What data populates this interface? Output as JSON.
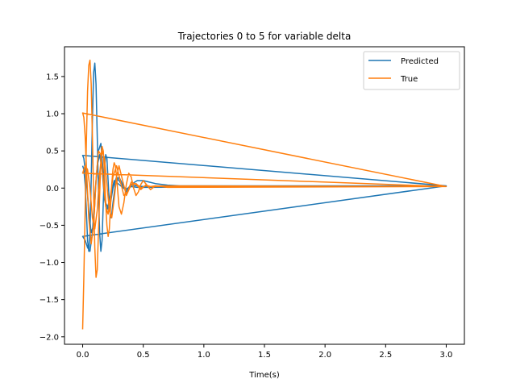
{
  "chart_data": {
    "type": "line",
    "title": "Trajectories 0 to 5 for variable delta",
    "xlabel": "Time(s)",
    "ylabel": "",
    "xlim": [
      -0.15,
      3.15
    ],
    "ylim": [
      -2.1,
      1.9
    ],
    "xticks": [
      0.0,
      0.5,
      1.0,
      1.5,
      2.0,
      2.5,
      3.0
    ],
    "xtick_labels": [
      "0.0",
      "0.5",
      "1.0",
      "1.5",
      "2.0",
      "2.5",
      "3.0"
    ],
    "yticks": [
      -2.0,
      -1.5,
      -1.0,
      -0.5,
      0.0,
      0.5,
      1.0,
      1.5
    ],
    "ytick_labels": [
      "−2.0",
      "−1.5",
      "−1.0",
      "−0.5",
      "0.0",
      "0.5",
      "1.0",
      "1.5"
    ],
    "grid": false,
    "legend_position": "top-right",
    "series": [
      {
        "name": "Predicted",
        "color": "#1f77b4",
        "x": [
          0.0,
          0.01,
          0.02,
          0.03,
          0.04,
          0.05,
          0.06,
          0.07,
          0.08,
          0.09,
          0.1,
          0.11,
          0.12,
          0.13,
          0.14,
          0.15,
          0.16,
          0.17,
          0.18,
          0.19,
          0.2,
          0.21,
          0.22,
          0.23,
          0.24,
          0.25,
          0.27,
          0.3,
          0.33,
          0.36,
          0.4,
          0.45,
          0.5,
          0.55,
          0.6,
          0.7,
          0.8,
          3.0,
          0.0,
          0.01,
          0.03,
          0.05,
          0.07,
          0.09,
          0.11,
          0.13,
          0.15,
          0.17,
          0.19,
          0.22,
          0.25,
          0.28,
          0.32,
          0.36,
          0.4,
          0.45,
          0.5,
          0.6,
          3.0,
          0.0,
          0.02,
          0.04,
          0.06,
          0.08,
          0.1,
          0.12,
          0.14,
          0.16,
          0.18,
          0.2,
          0.23,
          0.26,
          0.3,
          0.35,
          0.4,
          0.45,
          0.5,
          3.0
        ],
        "y": [
          0.3,
          0.25,
          0.05,
          -0.3,
          -0.7,
          -0.85,
          -0.6,
          0.1,
          0.9,
          1.55,
          1.68,
          1.4,
          0.7,
          -0.05,
          -0.6,
          -0.85,
          -0.7,
          -0.2,
          0.25,
          0.45,
          0.4,
          0.1,
          -0.2,
          -0.4,
          -0.35,
          -0.2,
          0.05,
          0.15,
          0.05,
          -0.05,
          0.05,
          0.1,
          0.1,
          0.08,
          0.06,
          0.04,
          0.03,
          0.03,
          0.44,
          0.4,
          0.1,
          -0.3,
          -0.6,
          -0.5,
          0.1,
          0.5,
          0.6,
          0.2,
          -0.2,
          -0.3,
          0.0,
          0.15,
          0.05,
          -0.02,
          0.04,
          0.03,
          0.02,
          0.02,
          0.03,
          -0.65,
          -0.7,
          -0.8,
          -0.85,
          -0.6,
          -0.1,
          0.3,
          0.45,
          0.25,
          -0.15,
          -0.3,
          -0.1,
          0.1,
          0.05,
          -0.02,
          0.02,
          0.01,
          0.01,
          0.03
        ]
      },
      {
        "name": "True",
        "color": "#ff7f0e",
        "x": [
          0.0,
          0.01,
          0.02,
          0.03,
          0.04,
          0.05,
          0.06,
          0.07,
          0.08,
          0.09,
          0.1,
          0.11,
          0.12,
          0.13,
          0.14,
          0.15,
          0.16,
          0.17,
          0.18,
          0.19,
          0.2,
          0.21,
          0.22,
          0.23,
          0.24,
          0.25,
          0.26,
          0.27,
          0.28,
          0.29,
          0.3,
          0.32,
          0.34,
          0.36,
          0.38,
          0.4,
          0.42,
          0.44,
          0.46,
          0.48,
          0.5,
          0.53,
          0.56,
          0.6,
          0.65,
          0.7,
          3.0,
          0.0,
          0.01,
          0.02,
          0.03,
          0.05,
          0.07,
          0.09,
          0.11,
          0.13,
          0.15,
          0.17,
          0.19,
          0.21,
          0.23,
          0.25,
          0.28,
          0.31,
          0.34,
          0.37,
          0.4,
          0.44,
          0.48,
          0.52,
          0.56,
          0.6,
          3.0,
          0.0,
          0.02,
          0.04,
          0.06,
          0.08,
          0.1,
          0.12,
          0.14,
          0.16,
          0.18,
          0.2,
          0.22,
          0.24,
          0.26,
          0.28,
          0.3,
          0.33,
          0.36,
          0.4,
          0.44,
          0.48,
          0.52,
          0.56,
          3.0
        ],
        "y": [
          -1.9,
          -1.2,
          -0.3,
          0.6,
          1.3,
          1.65,
          1.72,
          1.4,
          0.7,
          -0.1,
          -0.8,
          -1.2,
          -1.1,
          -0.6,
          -0.1,
          0.4,
          0.56,
          0.5,
          0.2,
          -0.2,
          -0.5,
          -0.65,
          -0.55,
          -0.25,
          0.05,
          0.25,
          0.34,
          0.3,
          0.15,
          -0.05,
          -0.25,
          -0.35,
          -0.2,
          0.05,
          0.2,
          0.15,
          0.0,
          -0.1,
          -0.05,
          0.05,
          0.1,
          0.04,
          -0.02,
          0.03,
          0.02,
          0.01,
          0.02,
          1.01,
          0.95,
          0.7,
          0.3,
          -0.4,
          -0.75,
          -0.5,
          0.1,
          0.5,
          0.45,
          0.1,
          -0.25,
          -0.35,
          -0.1,
          0.15,
          0.3,
          0.1,
          -0.1,
          -0.05,
          0.08,
          0.05,
          -0.02,
          0.04,
          0.02,
          0.03,
          0.02,
          0.2,
          0.3,
          0.25,
          0.0,
          -0.4,
          -0.55,
          -0.3,
          0.2,
          0.5,
          0.4,
          0.05,
          -0.3,
          -0.4,
          -0.15,
          0.15,
          0.3,
          0.1,
          -0.1,
          0.05,
          0.06,
          0.0,
          0.03,
          0.02,
          0.02
        ]
      }
    ]
  }
}
